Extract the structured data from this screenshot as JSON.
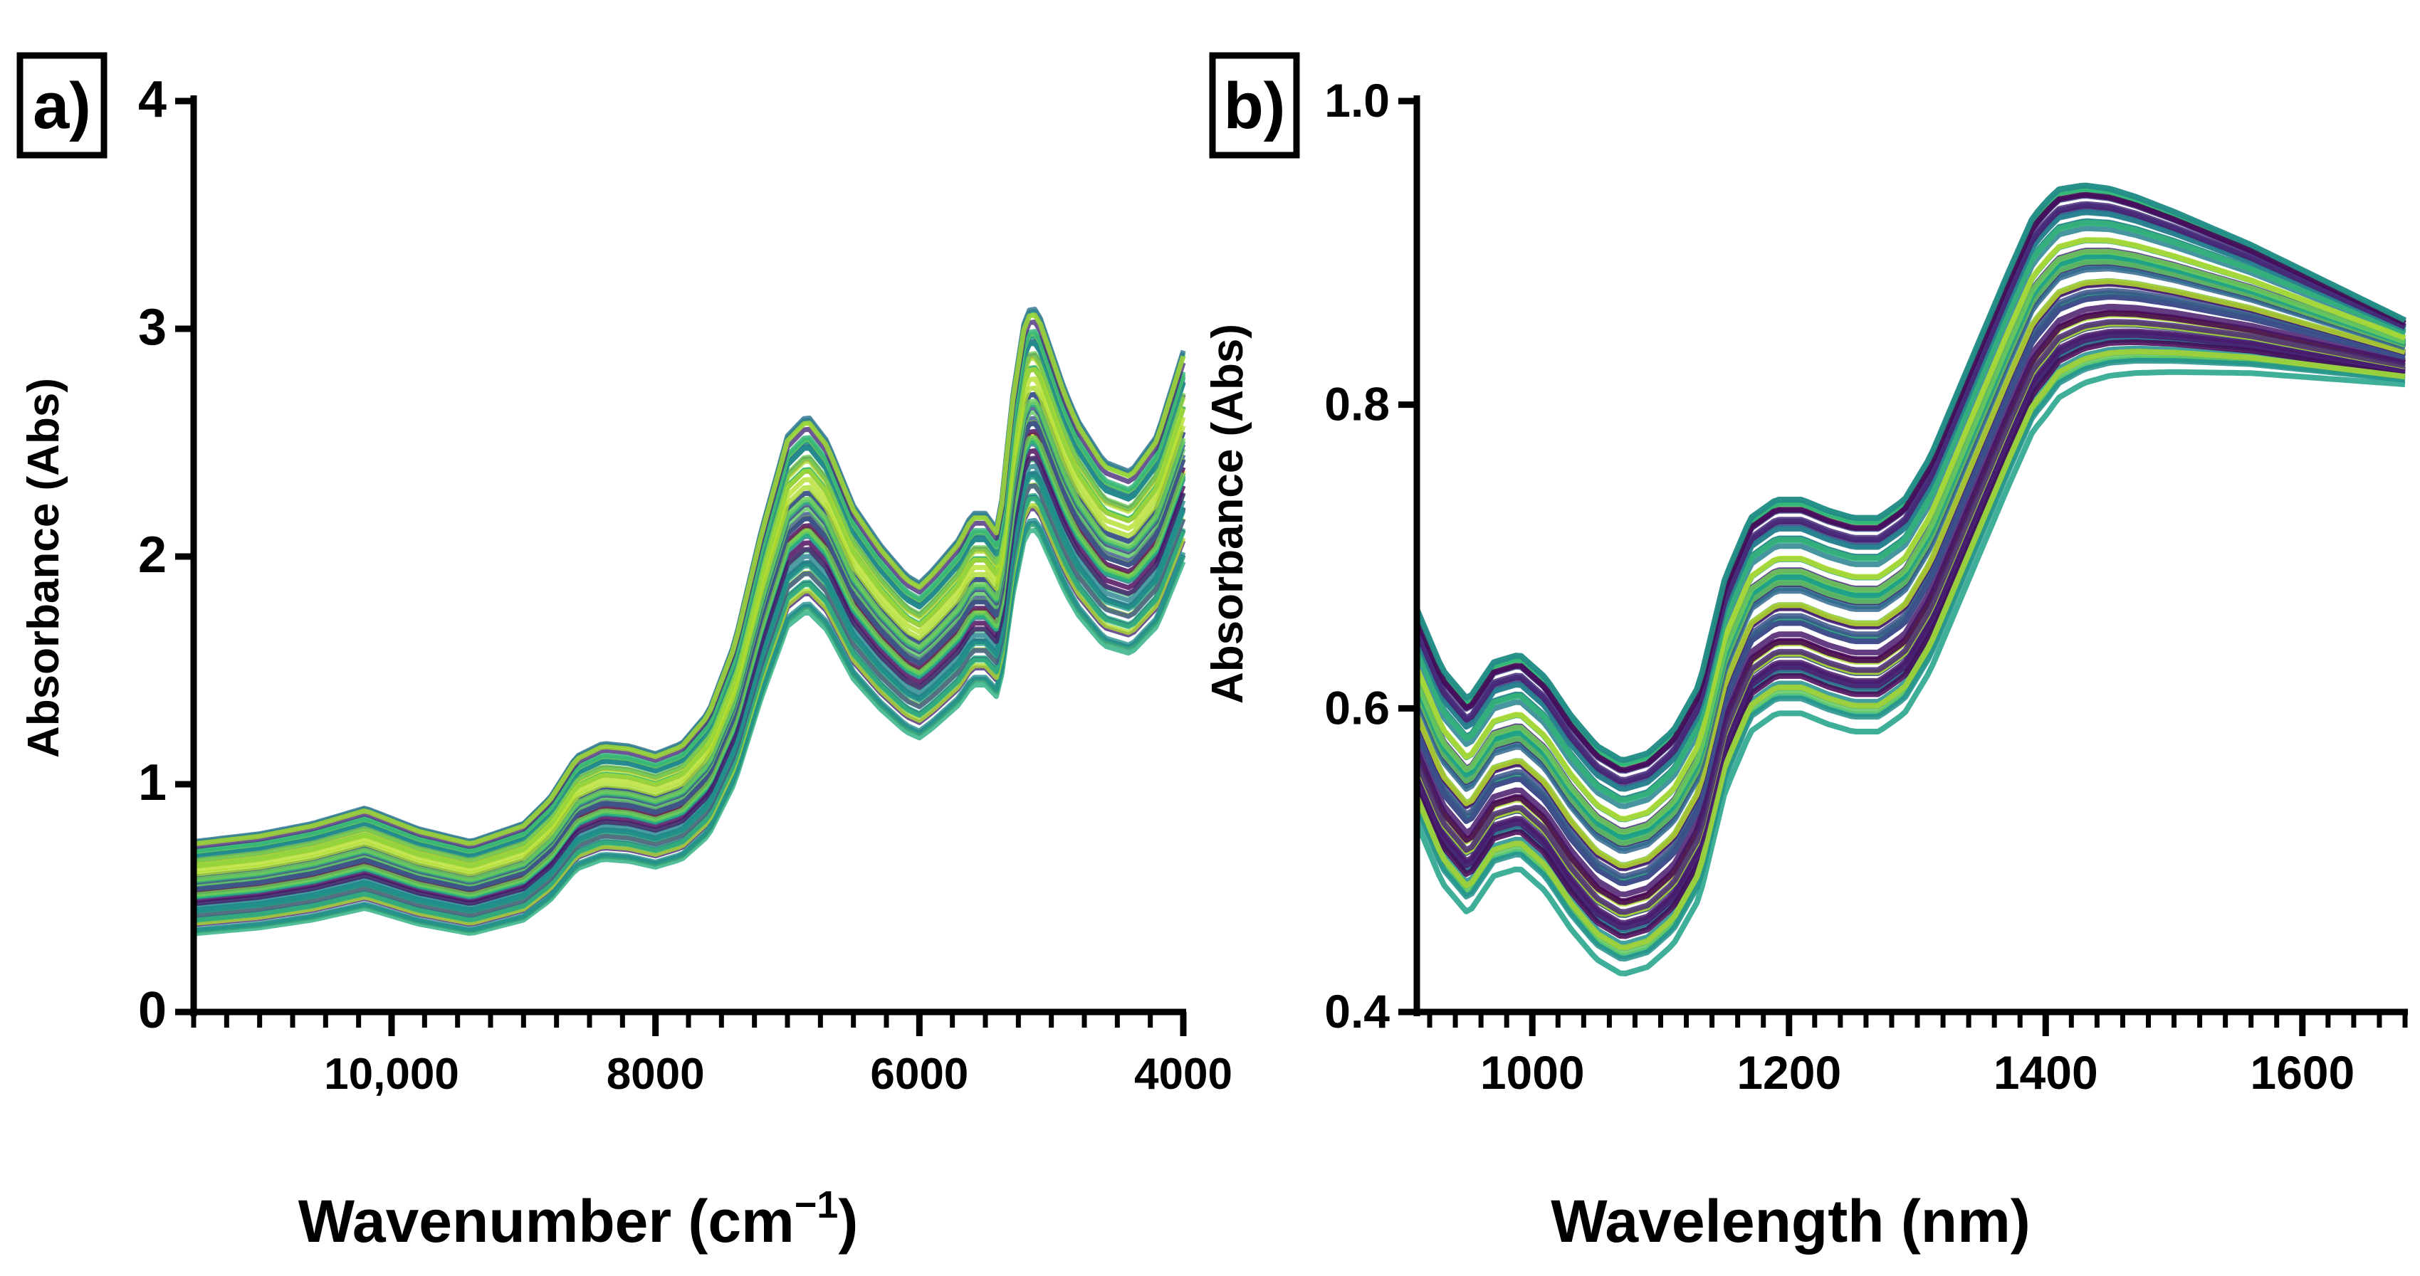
{
  "chart_data": [
    {
      "type": "line",
      "panel_label": "a)",
      "xlabel": "Wavenumber (cm",
      "xlabel_sup": "−1",
      "xlabel_close": ")",
      "ylabel": "Absorbance (Abs)",
      "xlim": [
        11500,
        4000
      ],
      "ylim": [
        0,
        4
      ],
      "x_ticks": [
        10000,
        8000,
        6000,
        4000
      ],
      "x_tick_labels": [
        "10,000",
        "8000",
        "6000",
        "4000"
      ],
      "y_ticks": [
        0,
        1,
        2,
        3,
        4
      ],
      "y_tick_labels": [
        "0",
        "1",
        "2",
        "3",
        "4"
      ],
      "minor_x_step": 250,
      "series_count": 60,
      "base_spectrum": {
        "x": [
          11500,
          11000,
          10600,
          10200,
          9800,
          9400,
          9000,
          8800,
          8600,
          8400,
          8200,
          8000,
          7800,
          7600,
          7400,
          7200,
          7000,
          6850,
          6700,
          6500,
          6300,
          6100,
          6000,
          5900,
          5700,
          5600,
          5500,
          5400,
          5300,
          5200,
          5150,
          5100,
          5000,
          4900,
          4800,
          4600,
          4400,
          4200,
          4000
        ],
        "y": [
          0.55,
          0.58,
          0.62,
          0.68,
          0.6,
          0.55,
          0.62,
          0.72,
          0.88,
          0.93,
          0.92,
          0.89,
          0.93,
          1.05,
          1.32,
          1.75,
          2.12,
          2.2,
          2.1,
          1.85,
          1.7,
          1.58,
          1.55,
          1.6,
          1.72,
          1.82,
          1.82,
          1.75,
          2.25,
          2.58,
          2.62,
          2.6,
          2.45,
          2.3,
          2.18,
          2.02,
          1.98,
          2.12,
          2.45
        ]
      }
    },
    {
      "type": "line",
      "panel_label": "b)",
      "xlabel": "Wavelength (nm)",
      "ylabel": "Absorbance (Abs)",
      "xlim": [
        910,
        1680
      ],
      "ylim": [
        0.4,
        1.0
      ],
      "x_ticks": [
        1000,
        1200,
        1400,
        1600
      ],
      "x_tick_labels": [
        "1000",
        "1200",
        "1400",
        "1600"
      ],
      "y_ticks": [
        0.4,
        0.6,
        0.8,
        1.0
      ],
      "y_tick_labels": [
        "0.4",
        "0.6",
        "0.8",
        "1.0"
      ],
      "minor_x_step": 20,
      "series_count": 60,
      "base_spectrum": {
        "x": [
          910,
          930,
          950,
          970,
          990,
          1010,
          1030,
          1050,
          1070,
          1090,
          1110,
          1130,
          1150,
          1170,
          1190,
          1210,
          1230,
          1250,
          1270,
          1290,
          1310,
          1330,
          1350,
          1370,
          1390,
          1410,
          1430,
          1450,
          1470,
          1500,
          1530,
          1560,
          1600,
          1640,
          1680
        ],
        "y": [
          0.6,
          0.56,
          0.54,
          0.565,
          0.57,
          0.555,
          0.53,
          0.51,
          0.5,
          0.505,
          0.52,
          0.55,
          0.62,
          0.66,
          0.672,
          0.672,
          0.665,
          0.66,
          0.66,
          0.672,
          0.7,
          0.74,
          0.78,
          0.82,
          0.858,
          0.878,
          0.884,
          0.885,
          0.883,
          0.878,
          0.872,
          0.866,
          0.856,
          0.846,
          0.836
        ]
      }
    }
  ],
  "colors": {
    "viridis_palette": [
      "#440154",
      "#472c7a",
      "#3b528b",
      "#2c728e",
      "#21918c",
      "#28ae80",
      "#5ec962",
      "#addc30",
      "#fde725",
      "#31688e",
      "#3e4989",
      "#1f9e89",
      "#2fb47c",
      "#6ece58",
      "#35b779",
      "#26828e",
      "#482878",
      "#481a6c",
      "#1fa187",
      "#b5de2b"
    ],
    "axis": "#000000"
  }
}
